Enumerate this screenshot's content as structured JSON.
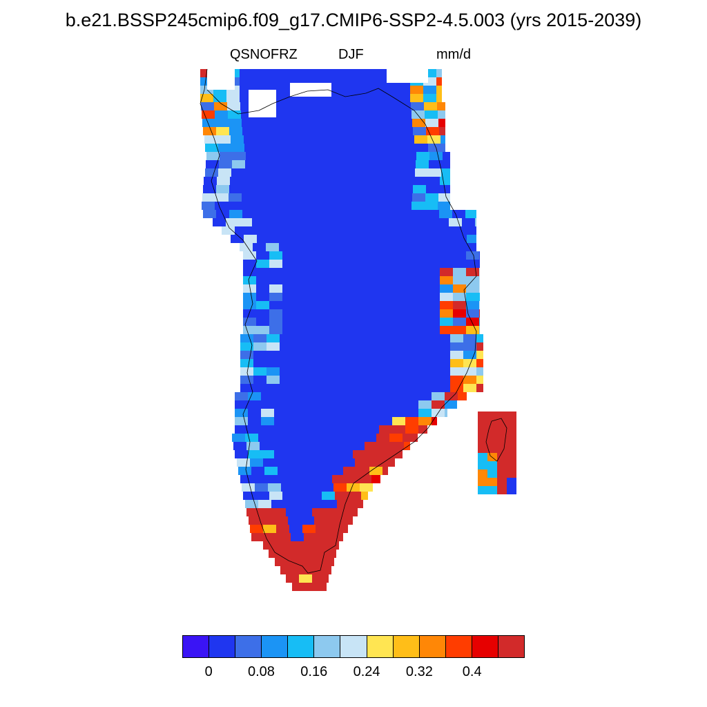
{
  "title": "b.e21.BSSP245cmip6.f09_g17.CMIP6-SSP2-4.5.003 (yrs 2015-2039)",
  "subtitle": {
    "left": "QSNOFRZ",
    "center": "DJF",
    "right": "mm/d"
  },
  "colorbar": {
    "colors": [
      "#3a14f5",
      "#1f36f0",
      "#3d6fe8",
      "#1b94f5",
      "#17bdf5",
      "#8dc9ef",
      "#c8e4f6",
      "#ffe552",
      "#ffbe18",
      "#ff8706",
      "#ff3d00",
      "#e60000",
      "#d22a2a"
    ],
    "tick_labels": [
      "0",
      "0.08",
      "0.16",
      "0.24",
      "0.32",
      "0.4"
    ]
  },
  "map_colors": {
    "interior": "#1f36f0",
    "coast_palette": [
      "#3d6fe8",
      "#1b94f5",
      "#17bdf5",
      "#8dc9ef",
      "#c8e4f6",
      "#ffe552",
      "#ffbe18",
      "#ff8706",
      "#ff3d00",
      "#e60000",
      "#d22a2a"
    ],
    "outline": "#000000"
  }
}
